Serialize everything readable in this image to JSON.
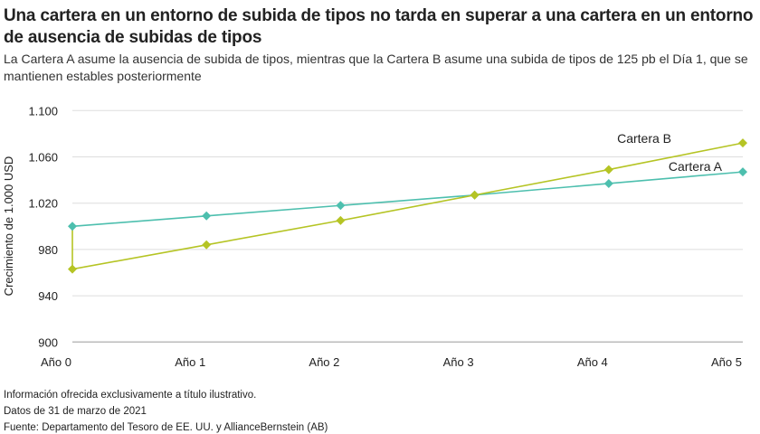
{
  "title": "Una cartera en un entorno de subida de tipos no tarda en superar a una cartera en un entorno de ausencia de subidas de tipos",
  "subtitle": "La Cartera A asume la ausencia de subida de tipos, mientras que la Cartera B asume una subida de tipos de 125 pb el Día 1, que se mantienen estables posteriormente",
  "notes": [
    "Información ofrecida exclusivamente a título ilustrativo.",
    "Datos de 31 de marzo de 2021",
    "Fuente: Departamento del Tesoro de EE. UU. y AllianceBernstein (AB)"
  ],
  "chart_data": {
    "type": "line",
    "title": "Una cartera en un entorno de subida de tipos no tarda en superar a una cartera en un entorno de ausencia de subidas de tipos",
    "xlabel": "",
    "ylabel": "Crecimiento de 1.000 USD",
    "categories": [
      "Año 0",
      "Año 1",
      "Año 2",
      "Año 3",
      "Año 4",
      "Año 5"
    ],
    "ylim": [
      900,
      1100
    ],
    "yticks": [
      900,
      940,
      980,
      1020,
      1060,
      1100
    ],
    "ytick_labels": [
      "900",
      "940",
      "980",
      "1.020",
      "1.060",
      "1.100"
    ],
    "grid": "horizontal",
    "series": [
      {
        "name": "Cartera A",
        "color": "#4dbfae",
        "values": [
          1000,
          1009,
          1018,
          1027,
          1037,
          1047
        ]
      },
      {
        "name": "Cartera B",
        "color": "#b5c424",
        "start_value": 1000,
        "values": [
          963,
          984,
          1005,
          1027,
          1049,
          1072
        ]
      }
    ]
  }
}
